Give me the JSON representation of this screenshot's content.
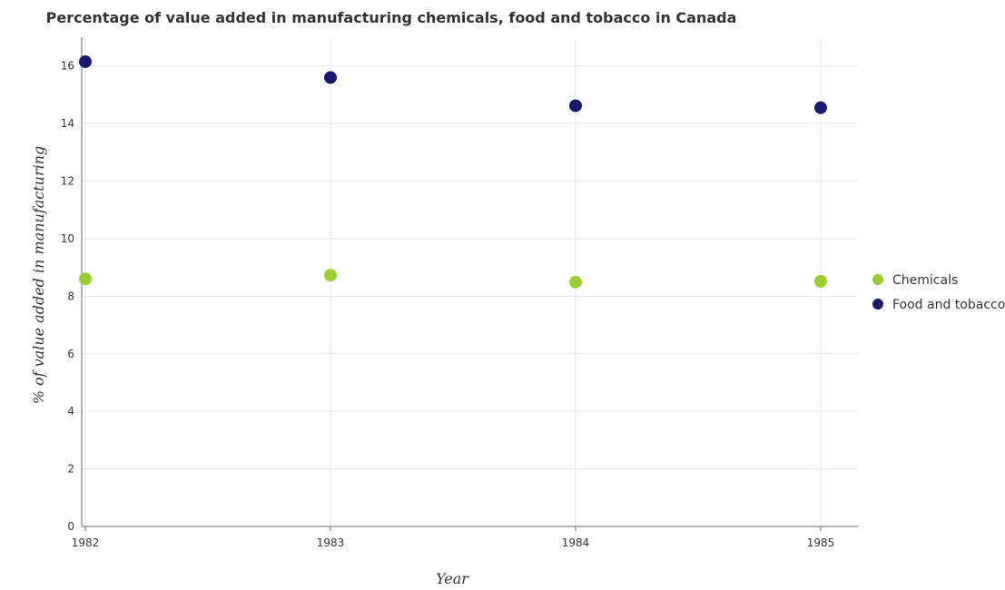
{
  "chart_data": {
    "type": "scatter",
    "title": "Percentage of value added in manufacturing chemicals, food and tobacco in Canada",
    "xlabel": "Year",
    "ylabel": "% of value added in manufacturing",
    "categories": [
      "1982",
      "1983",
      "1984",
      "1985"
    ],
    "ylim": [
      0,
      17
    ],
    "y_ticks": [
      0,
      2,
      4,
      6,
      8,
      10,
      12,
      14,
      16
    ],
    "y_tick_labels": [
      "0",
      "2",
      "4",
      "6",
      "8",
      "10",
      "12",
      "14",
      "16"
    ],
    "grid": true,
    "legend_position": "right",
    "series": [
      {
        "name": "Chemicals",
        "color": "#9acd32",
        "values": [
          8.6,
          8.73,
          8.49,
          8.52
        ]
      },
      {
        "name": "Food and tobacco",
        "color": "#191970",
        "values": [
          16.15,
          15.6,
          14.62,
          14.55
        ]
      }
    ]
  }
}
